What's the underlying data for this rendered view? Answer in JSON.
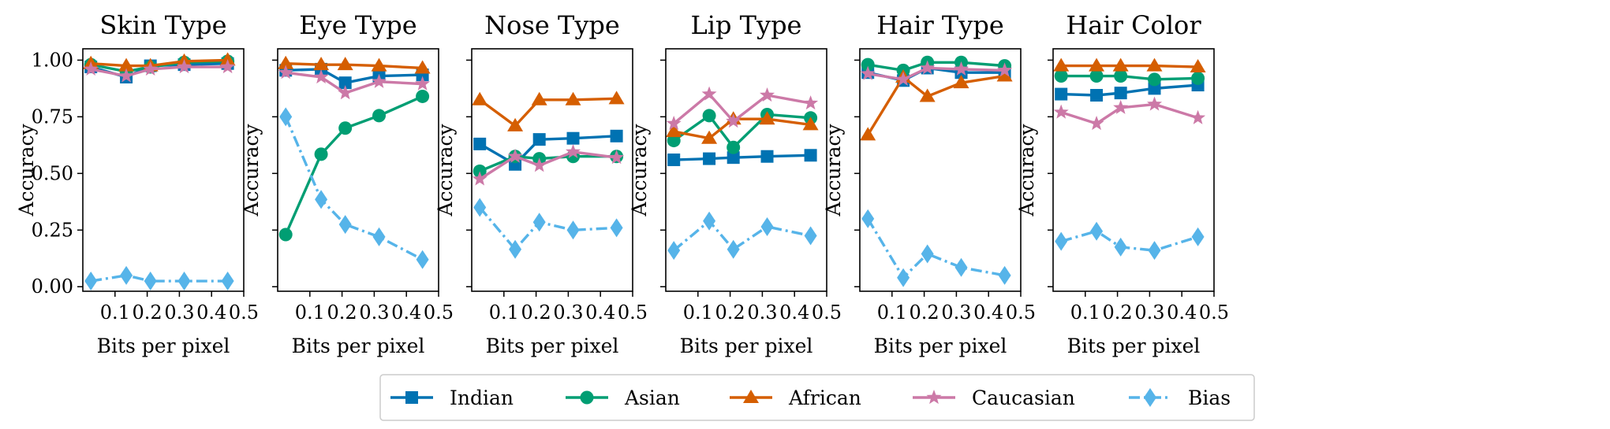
{
  "legend": {
    "placement": "bottom-center",
    "entries": [
      "Indian",
      "Asian",
      "African",
      "Caucasian",
      "Bias"
    ]
  },
  "series_styles": [
    {
      "name": "Indian",
      "color": "#0072b2",
      "marker": "square",
      "dash": "solid"
    },
    {
      "name": "Asian",
      "color": "#009e73",
      "marker": "circle",
      "dash": "solid"
    },
    {
      "name": "African",
      "color": "#d55e00",
      "marker": "triangle",
      "dash": "solid"
    },
    {
      "name": "Caucasian",
      "color": "#cc79a7",
      "marker": "star",
      "dash": "solid"
    },
    {
      "name": "Bias",
      "color": "#56b4e9",
      "marker": "diamond",
      "dash": "dashdot"
    }
  ],
  "chart_data": [
    {
      "type": "line",
      "title": "Skin Type",
      "xlabel": "Bits per pixel",
      "ylabel": "Accuracy",
      "xlim": [
        0,
        0.5
      ],
      "ylim": [
        -0.02,
        1.05
      ],
      "xticks": [
        "0.1",
        "0.2",
        "0.3",
        "0.4",
        "0.5"
      ],
      "yticks": [
        "0.00",
        "0.25",
        "0.50",
        "0.75",
        "1.00"
      ],
      "show_yticklabels": true,
      "grid": false,
      "x": [
        0.025,
        0.135,
        0.21,
        0.315,
        0.45
      ],
      "series": [
        {
          "name": "Indian",
          "values": [
            0.97,
            0.925,
            0.975,
            0.98,
            0.985
          ]
        },
        {
          "name": "Asian",
          "values": [
            0.98,
            0.95,
            0.97,
            0.99,
            0.995
          ]
        },
        {
          "name": "African",
          "values": [
            0.985,
            0.975,
            0.975,
            0.995,
            1.0
          ]
        },
        {
          "name": "Caucasian",
          "values": [
            0.96,
            0.93,
            0.96,
            0.97,
            0.97
          ]
        },
        {
          "name": "Bias",
          "values": [
            0.025,
            0.05,
            0.025,
            0.025,
            0.025
          ]
        }
      ]
    },
    {
      "type": "line",
      "title": "Eye Type",
      "xlabel": "Bits per pixel",
      "ylabel": "Accuracy",
      "xlim": [
        0,
        0.5
      ],
      "ylim": [
        -0.02,
        1.05
      ],
      "xticks": [
        "0.1",
        "0.2",
        "0.3",
        "0.4",
        "0.5"
      ],
      "yticks": [
        "0.00",
        "0.25",
        "0.50",
        "0.75",
        "1.00"
      ],
      "show_yticklabels": false,
      "grid": false,
      "x": [
        0.025,
        0.135,
        0.21,
        0.315,
        0.45
      ],
      "series": [
        {
          "name": "Indian",
          "values": [
            0.955,
            0.96,
            0.9,
            0.93,
            0.935
          ]
        },
        {
          "name": "Asian",
          "values": [
            0.23,
            0.585,
            0.7,
            0.755,
            0.84
          ]
        },
        {
          "name": "African",
          "values": [
            0.985,
            0.98,
            0.98,
            0.975,
            0.965
          ]
        },
        {
          "name": "Caucasian",
          "values": [
            0.945,
            0.925,
            0.855,
            0.905,
            0.895
          ]
        },
        {
          "name": "Bias",
          "values": [
            0.75,
            0.385,
            0.275,
            0.22,
            0.12
          ]
        }
      ]
    },
    {
      "type": "line",
      "title": "Nose Type",
      "xlabel": "Bits per pixel",
      "ylabel": "Accuracy",
      "xlim": [
        0,
        0.5
      ],
      "ylim": [
        -0.02,
        1.05
      ],
      "xticks": [
        "0.1",
        "0.2",
        "0.3",
        "0.4",
        "0.5"
      ],
      "yticks": [
        "0.00",
        "0.25",
        "0.50",
        "0.75",
        "1.00"
      ],
      "show_yticklabels": false,
      "grid": false,
      "x": [
        0.025,
        0.135,
        0.21,
        0.315,
        0.45
      ],
      "series": [
        {
          "name": "Indian",
          "values": [
            0.63,
            0.54,
            0.65,
            0.655,
            0.665
          ]
        },
        {
          "name": "Asian",
          "values": [
            0.51,
            0.575,
            0.565,
            0.575,
            0.575
          ]
        },
        {
          "name": "African",
          "values": [
            0.825,
            0.71,
            0.825,
            0.825,
            0.83
          ]
        },
        {
          "name": "Caucasian",
          "values": [
            0.475,
            0.575,
            0.535,
            0.595,
            0.57
          ]
        },
        {
          "name": "Bias",
          "values": [
            0.35,
            0.165,
            0.285,
            0.25,
            0.26
          ]
        }
      ]
    },
    {
      "type": "line",
      "title": "Lip Type",
      "xlabel": "Bits per pixel",
      "ylabel": "Accuracy",
      "xlim": [
        0,
        0.5
      ],
      "ylim": [
        -0.02,
        1.05
      ],
      "xticks": [
        "0.1",
        "0.2",
        "0.3",
        "0.4",
        "0.5"
      ],
      "yticks": [
        "0.00",
        "0.25",
        "0.50",
        "0.75",
        "1.00"
      ],
      "show_yticklabels": false,
      "grid": false,
      "x": [
        0.025,
        0.135,
        0.21,
        0.315,
        0.45
      ],
      "series": [
        {
          "name": "Indian",
          "values": [
            0.56,
            0.565,
            0.57,
            0.575,
            0.58
          ]
        },
        {
          "name": "Asian",
          "values": [
            0.645,
            0.755,
            0.615,
            0.76,
            0.745
          ]
        },
        {
          "name": "African",
          "values": [
            0.685,
            0.655,
            0.74,
            0.74,
            0.715
          ]
        },
        {
          "name": "Caucasian",
          "values": [
            0.72,
            0.85,
            0.73,
            0.845,
            0.81
          ]
        },
        {
          "name": "Bias",
          "values": [
            0.16,
            0.29,
            0.165,
            0.265,
            0.225
          ]
        }
      ]
    },
    {
      "type": "line",
      "title": "Hair Type",
      "xlabel": "Bits per pixel",
      "ylabel": "Accuracy",
      "xlim": [
        0,
        0.5
      ],
      "ylim": [
        -0.02,
        1.05
      ],
      "xticks": [
        "0.1",
        "0.2",
        "0.3",
        "0.4",
        "0.5"
      ],
      "yticks": [
        "0.00",
        "0.25",
        "0.50",
        "0.75",
        "1.00"
      ],
      "show_yticklabels": false,
      "grid": false,
      "x": [
        0.025,
        0.135,
        0.21,
        0.315,
        0.45
      ],
      "series": [
        {
          "name": "Indian",
          "values": [
            0.945,
            0.91,
            0.965,
            0.945,
            0.945
          ]
        },
        {
          "name": "Asian",
          "values": [
            0.98,
            0.955,
            0.99,
            0.99,
            0.975
          ]
        },
        {
          "name": "African",
          "values": [
            0.67,
            0.925,
            0.84,
            0.9,
            0.93
          ]
        },
        {
          "name": "Caucasian",
          "values": [
            0.94,
            0.915,
            0.965,
            0.96,
            0.955
          ]
        },
        {
          "name": "Bias",
          "values": [
            0.3,
            0.04,
            0.145,
            0.085,
            0.05
          ]
        }
      ]
    },
    {
      "type": "line",
      "title": "Hair Color",
      "xlabel": "Bits per pixel",
      "ylabel": "Accuracy",
      "xlim": [
        0,
        0.5
      ],
      "ylim": [
        -0.02,
        1.05
      ],
      "xticks": [
        "0.1",
        "0.2",
        "0.3",
        "0.4",
        "0.5"
      ],
      "yticks": [
        "0.00",
        "0.25",
        "0.50",
        "0.75",
        "1.00"
      ],
      "show_yticklabels": false,
      "grid": false,
      "x": [
        0.025,
        0.135,
        0.21,
        0.315,
        0.45
      ],
      "series": [
        {
          "name": "Indian",
          "values": [
            0.85,
            0.845,
            0.855,
            0.875,
            0.89
          ]
        },
        {
          "name": "Asian",
          "values": [
            0.93,
            0.93,
            0.93,
            0.915,
            0.92
          ]
        },
        {
          "name": "African",
          "values": [
            0.975,
            0.975,
            0.975,
            0.975,
            0.97
          ]
        },
        {
          "name": "Caucasian",
          "values": [
            0.77,
            0.72,
            0.79,
            0.805,
            0.745
          ]
        },
        {
          "name": "Bias",
          "values": [
            0.2,
            0.245,
            0.175,
            0.16,
            0.22
          ]
        }
      ]
    }
  ]
}
